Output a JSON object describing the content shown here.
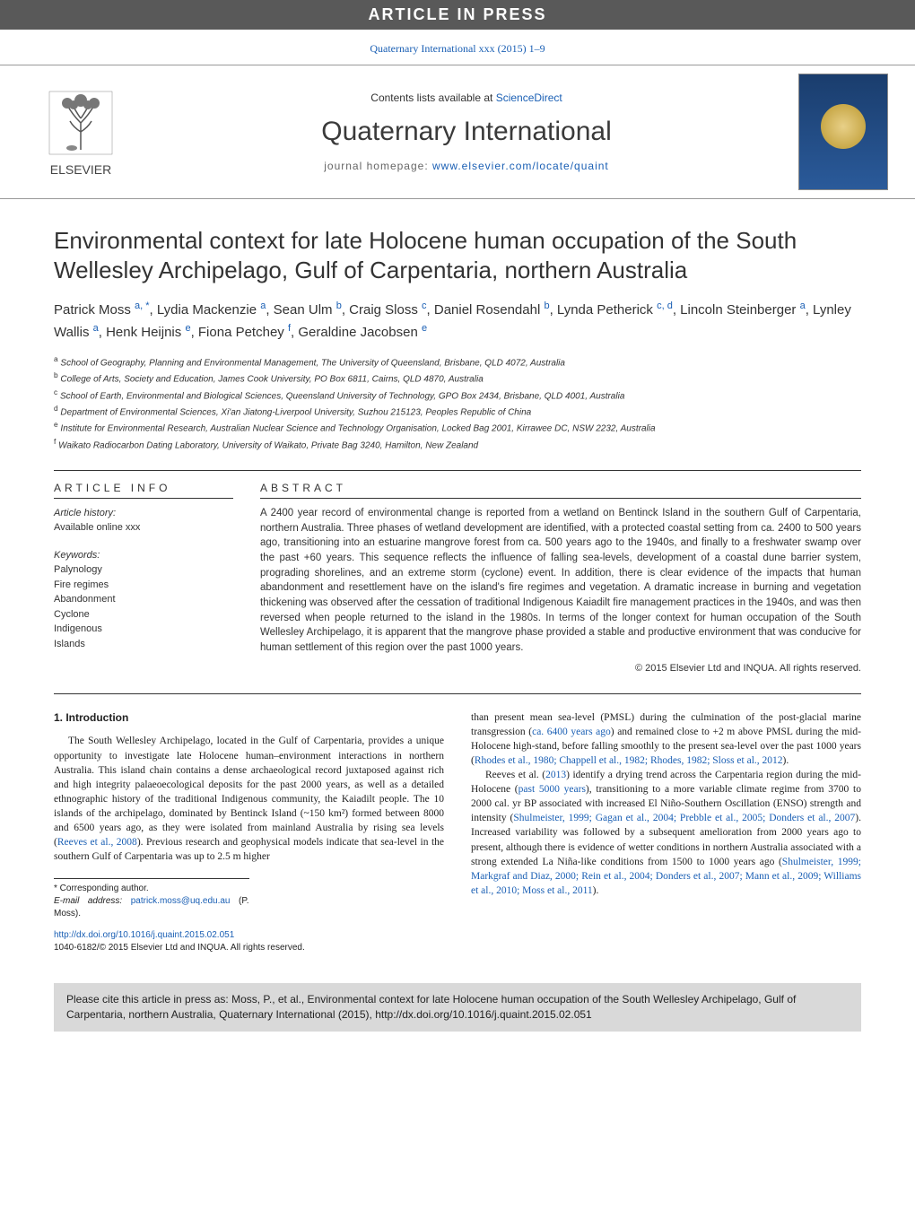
{
  "colors": {
    "banner_bg": "#595959",
    "banner_text": "#ffffff",
    "link": "#1a5fb4",
    "text": "#333333",
    "rule": "#333333",
    "citebox_bg": "#d9d9d9"
  },
  "banner_text": "ARTICLE IN PRESS",
  "ref_line": "Quaternary International xxx (2015) 1–9",
  "masthead": {
    "publisher_name": "ELSEVIER",
    "contents_prefix": "Contents lists available at ",
    "contents_link": "ScienceDirect",
    "journal_name": "Quaternary International",
    "homepage_prefix": "journal homepage: ",
    "homepage_link": "www.elsevier.com/locate/quaint"
  },
  "title": "Environmental context for late Holocene human occupation of the South Wellesley Archipelago, Gulf of Carpentaria, northern Australia",
  "authors_html": "Patrick Moss <sup>a, *</sup>, Lydia Mackenzie <sup>a</sup>, Sean Ulm <sup>b</sup>, Craig Sloss <sup>c</sup>, Daniel Rosendahl <sup>b</sup>, Lynda Petherick <sup>c, d</sup>, Lincoln Steinberger <sup>a</sup>, Lynley Wallis <sup>a</sup>, Henk Heijnis <sup>e</sup>, Fiona Petchey <sup>f</sup>, Geraldine Jacobsen <sup>e</sup>",
  "affiliations": [
    {
      "marker": "a",
      "text": "School of Geography, Planning and Environmental Management, The University of Queensland, Brisbane, QLD 4072, Australia"
    },
    {
      "marker": "b",
      "text": "College of Arts, Society and Education, James Cook University, PO Box 6811, Cairns, QLD 4870, Australia"
    },
    {
      "marker": "c",
      "text": "School of Earth, Environmental and Biological Sciences, Queensland University of Technology, GPO Box 2434, Brisbane, QLD 4001, Australia"
    },
    {
      "marker": "d",
      "text": "Department of Environmental Sciences, Xi'an Jiatong-Liverpool University, Suzhou 215123, Peoples Republic of China"
    },
    {
      "marker": "e",
      "text": "Institute for Environmental Research, Australian Nuclear Science and Technology Organisation, Locked Bag 2001, Kirrawee DC, NSW 2232, Australia"
    },
    {
      "marker": "f",
      "text": "Waikato Radiocarbon Dating Laboratory, University of Waikato, Private Bag 3240, Hamilton, New Zealand"
    }
  ],
  "info": {
    "heading": "ARTICLE INFO",
    "history_label": "Article history:",
    "history_value": "Available online xxx",
    "keywords_label": "Keywords:",
    "keywords": [
      "Palynology",
      "Fire regimes",
      "Abandonment",
      "Cyclone",
      "Indigenous",
      "Islands"
    ]
  },
  "abstract": {
    "heading": "ABSTRACT",
    "text": "A 2400 year record of environmental change is reported from a wetland on Bentinck Island in the southern Gulf of Carpentaria, northern Australia. Three phases of wetland development are identified, with a protected coastal setting from ca. 2400 to 500 years ago, transitioning into an estuarine mangrove forest from ca. 500 years ago to the 1940s, and finally to a freshwater swamp over the past +60 years. This sequence reflects the influence of falling sea-levels, development of a coastal dune barrier system, prograding shorelines, and an extreme storm (cyclone) event. In addition, there is clear evidence of the impacts that human abandonment and resettlement have on the island's fire regimes and vegetation. A dramatic increase in burning and vegetation thickening was observed after the cessation of traditional Indigenous Kaiadilt fire management practices in the 1940s, and was then reversed when people returned to the island in the 1980s. In terms of the longer context for human occupation of the South Wellesley Archipelago, it is apparent that the mangrove phase provided a stable and productive environment that was conducive for human settlement of this region over the past 1000 years.",
    "copyright": "© 2015 Elsevier Ltd and INQUA. All rights reserved."
  },
  "body": {
    "heading": "1. Introduction",
    "left_paras": [
      "The South Wellesley Archipelago, located in the Gulf of Carpentaria, provides a unique opportunity to investigate late Holocene human–environment interactions in northern Australia. This island chain contains a dense archaeological record juxtaposed against rich and high integrity palaeoecological deposits for the past 2000 years, as well as a detailed ethnographic history of the traditional Indigenous community, the Kaiadilt people. The 10 islands of the archipelago, dominated by Bentinck Island (~150 km²) formed between 8000 and 6500 years ago, as they were isolated from mainland Australia by rising sea levels (Reeves et al., 2008). Previous research and geophysical models indicate that sea-level in the southern Gulf of Carpentaria was up to 2.5 m higher"
    ],
    "right_paras": [
      "than present mean sea-level (PMSL) during the culmination of the post-glacial marine transgression (ca. 6400 years ago) and remained close to +2 m above PMSL during the mid-Holocene high-stand, before falling smoothly to the present sea-level over the past 1000 years (Rhodes et al., 1980; Chappell et al., 1982; Rhodes, 1982; Sloss et al., 2012).",
      "Reeves et al. (2013) identify a drying trend across the Carpentaria region during the mid-Holocene (past 5000 years), transitioning to a more variable climate regime from 3700 to 2000 cal. yr BP associated with increased El Niño-Southern Oscillation (ENSO) strength and intensity (Shulmeister, 1999; Gagan et al., 2004; Prebble et al., 2005; Donders et al., 2007). Increased variability was followed by a subsequent amelioration from 2000 years ago to present, although there is evidence of wetter conditions in northern Australia associated with a strong extended La Niña-like conditions from 1500 to 1000 years ago (Shulmeister, 1999; Markgraf and Diaz, 2000; Rein et al., 2004; Donders et al., 2007; Mann et al., 2009; Williams et al., 2010; Moss et al., 2011)."
    ]
  },
  "footnote": {
    "corr": "* Corresponding author.",
    "email_label": "E-mail address: ",
    "email": "patrick.moss@uq.edu.au",
    "email_suffix": " (P. Moss)."
  },
  "doi": {
    "url": "http://dx.doi.org/10.1016/j.quaint.2015.02.051",
    "issn_line": "1040-6182/© 2015 Elsevier Ltd and INQUA. All rights reserved."
  },
  "cite_box": "Please cite this article in press as: Moss, P., et al., Environmental context for late Holocene human occupation of the South Wellesley Archipelago, Gulf of Carpentaria, northern Australia, Quaternary International (2015), http://dx.doi.org/10.1016/j.quaint.2015.02.051"
}
